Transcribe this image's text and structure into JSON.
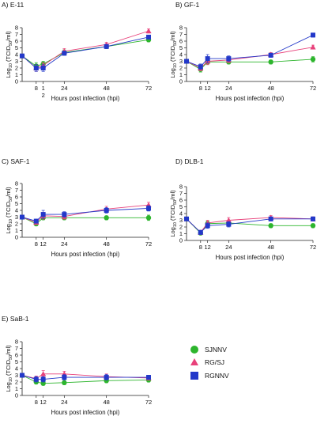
{
  "legend": {
    "items": [
      {
        "name": "SJNNV",
        "color": "#2db52d",
        "marker": "circle"
      },
      {
        "name": "RG/SJ",
        "color": "#e8417a",
        "marker": "triangle"
      },
      {
        "name": "RGNNV",
        "color": "#2338c9",
        "marker": "square"
      }
    ]
  },
  "chart_data": [
    {
      "type": "line",
      "title": "A) E-11",
      "xlabel": "Hours post infection (hpi)",
      "ylabel": "Log10 (TCID50/ml)",
      "xticks": [
        8,
        12,
        24,
        48,
        72
      ],
      "xtick_labels": [
        "8",
        "1\n2",
        "",
        "48",
        "72"
      ],
      "xtick_label_extra": {
        "24": "24"
      },
      "ylim": [
        0,
        8
      ],
      "yticks": [
        0,
        1,
        2,
        3,
        4,
        5,
        6,
        7,
        8
      ],
      "x": [
        0,
        8,
        12,
        24,
        48,
        72
      ],
      "series": [
        {
          "name": "SJNNV",
          "values": [
            3.8,
            2.3,
            2.6,
            4.3,
            5.2,
            6.2
          ],
          "err": [
            0.2,
            0.5,
            0.4,
            0.4,
            0.3,
            0.3
          ]
        },
        {
          "name": "RG/SJ",
          "values": [
            3.8,
            2.0,
            2.4,
            4.5,
            5.5,
            7.5
          ],
          "err": [
            0.2,
            0.5,
            0.4,
            0.4,
            0.3,
            0.3
          ]
        },
        {
          "name": "RGNNV",
          "values": [
            3.8,
            2.0,
            2.0,
            4.2,
            5.2,
            6.6
          ],
          "err": [
            0.2,
            0.5,
            0.5,
            0.3,
            0.3,
            0.3
          ]
        }
      ]
    },
    {
      "type": "line",
      "title": "B) GF-1",
      "xlabel": "Hours post infection (hpi)",
      "ylabel": "Log10 (TCID50/ml)",
      "xticks": [
        8,
        12,
        24,
        48,
        72
      ],
      "xtick_labels": [
        "8",
        "12",
        "24",
        "48",
        "72"
      ],
      "ylim": [
        0,
        8
      ],
      "yticks": [
        0,
        1,
        2,
        3,
        4,
        5,
        6,
        7,
        8
      ],
      "x": [
        0,
        8,
        12,
        24,
        48,
        72
      ],
      "series": [
        {
          "name": "SJNNV",
          "values": [
            3.0,
            1.8,
            2.9,
            2.9,
            2.9,
            3.3
          ],
          "err": [
            0.2,
            0.4,
            0.4,
            0.3,
            0.3,
            0.4
          ]
        },
        {
          "name": "RG/SJ",
          "values": [
            3.0,
            2.0,
            3.0,
            3.2,
            4.0,
            5.1
          ],
          "err": [
            0.2,
            0.4,
            0.5,
            0.4,
            0.3,
            0.3
          ]
        },
        {
          "name": "RGNNV",
          "values": [
            3.0,
            2.2,
            3.4,
            3.4,
            3.9,
            6.9
          ],
          "err": [
            0.2,
            0.4,
            0.6,
            0.4,
            0.3,
            0.3
          ]
        }
      ]
    },
    {
      "type": "line",
      "title": "C) SAF-1",
      "xlabel": "Hours post infection (hpi)",
      "ylabel": "Log10 (TCID50/ml)",
      "xticks": [
        8,
        12,
        24,
        48,
        72
      ],
      "xtick_labels": [
        "8",
        "12",
        "24",
        "48",
        "72"
      ],
      "ylim": [
        0,
        8
      ],
      "yticks": [
        0,
        1,
        2,
        3,
        4,
        5,
        6,
        7,
        8
      ],
      "x": [
        0,
        8,
        12,
        24,
        48,
        72
      ],
      "series": [
        {
          "name": "SJNNV",
          "values": [
            3.0,
            2.0,
            2.9,
            2.9,
            2.9,
            2.9
          ],
          "err": [
            0.2,
            0.3,
            0.3,
            0.3,
            0.3,
            0.4
          ]
        },
        {
          "name": "RG/SJ",
          "values": [
            3.0,
            2.2,
            3.2,
            3.1,
            4.2,
            4.8
          ],
          "err": [
            0.2,
            0.3,
            0.5,
            0.4,
            0.4,
            0.4
          ]
        },
        {
          "name": "RGNNV",
          "values": [
            3.0,
            2.4,
            3.4,
            3.4,
            4.0,
            4.3
          ],
          "err": [
            0.2,
            0.3,
            0.6,
            0.4,
            0.4,
            0.4
          ]
        }
      ]
    },
    {
      "type": "line",
      "title": "D) DLB-1",
      "xlabel": "Hours post infection (hpi)",
      "ylabel": "Log10 (TCID50/ml)",
      "xticks": [
        8,
        12,
        24,
        48,
        72
      ],
      "xtick_labels": [
        "8",
        "12",
        "24",
        "48",
        "72"
      ],
      "ylim": [
        0,
        8
      ],
      "yticks": [
        0,
        1,
        2,
        3,
        4,
        5,
        6,
        7,
        8
      ],
      "x": [
        0,
        8,
        12,
        24,
        48,
        72
      ],
      "series": [
        {
          "name": "SJNNV",
          "values": [
            3.2,
            1.1,
            2.5,
            2.6,
            2.2,
            2.2
          ],
          "err": [
            0.2,
            0.3,
            0.4,
            0.3,
            0.3,
            0.3
          ]
        },
        {
          "name": "RG/SJ",
          "values": [
            3.2,
            1.2,
            2.6,
            3.0,
            3.4,
            3.2
          ],
          "err": [
            0.2,
            0.3,
            0.4,
            0.4,
            0.3,
            0.3
          ]
        },
        {
          "name": "RGNNV",
          "values": [
            3.2,
            1.2,
            2.2,
            2.4,
            3.2,
            3.2
          ],
          "err": [
            0.2,
            0.3,
            0.4,
            0.4,
            0.3,
            0.3
          ]
        }
      ]
    },
    {
      "type": "line",
      "title": "E) SaB-1",
      "xlabel": "Hours post infection (hpi)",
      "ylabel": "Log10 (TCID50/ml)",
      "xticks": [
        8,
        12,
        24,
        48,
        72
      ],
      "xtick_labels": [
        "8",
        "12",
        "24",
        "48",
        "72"
      ],
      "ylim": [
        0,
        8
      ],
      "yticks": [
        0,
        1,
        2,
        3,
        4,
        5,
        6,
        7,
        8
      ],
      "x": [
        0,
        8,
        12,
        24,
        48,
        72
      ],
      "series": [
        {
          "name": "SJNNV",
          "values": [
            3.0,
            2.0,
            1.8,
            1.9,
            2.2,
            2.3
          ],
          "err": [
            0.2,
            0.3,
            0.3,
            0.3,
            0.3,
            0.3
          ]
        },
        {
          "name": "RG/SJ",
          "values": [
            3.0,
            2.5,
            3.2,
            3.2,
            2.8,
            2.6
          ],
          "err": [
            0.2,
            0.4,
            0.5,
            0.4,
            0.4,
            0.3
          ]
        },
        {
          "name": "RGNNV",
          "values": [
            3.0,
            2.4,
            2.4,
            2.7,
            2.7,
            2.7
          ],
          "err": [
            0.2,
            0.4,
            0.4,
            0.4,
            0.4,
            0.3
          ]
        }
      ]
    }
  ]
}
